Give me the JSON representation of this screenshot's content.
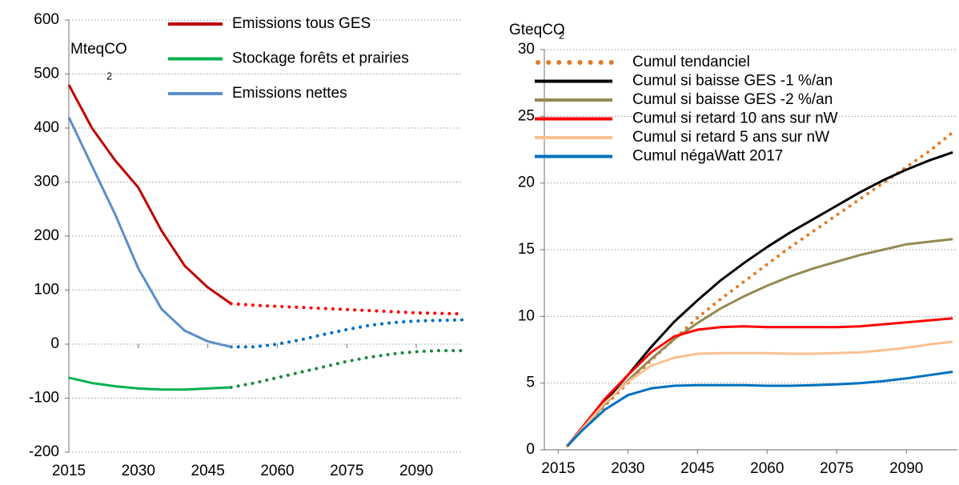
{
  "chart_data": [
    {
      "type": "line",
      "unit": "MteqCO",
      "unit_sub": "2",
      "x": [
        2015,
        2020,
        2025,
        2030,
        2035,
        2040,
        2045,
        2050,
        2055,
        2060,
        2065,
        2070,
        2075,
        2080,
        2085,
        2090,
        2095,
        2100
      ],
      "xlim": [
        2015,
        2100
      ],
      "xticks": [
        2015,
        2030,
        2045,
        2060,
        2075,
        2090
      ],
      "ylim": [
        -200,
        600
      ],
      "yticks": [
        -200,
        -100,
        0,
        100,
        200,
        300,
        400,
        500,
        600
      ],
      "grid": true,
      "legend": "top",
      "series": [
        {
          "name": "Emissions tous GES",
          "color": "#c00000",
          "projection_color": "#ff0000",
          "values": [
            480,
            400,
            340,
            290,
            210,
            145,
            105,
            75,
            null,
            null,
            null,
            null,
            null,
            null,
            null,
            null,
            null,
            null
          ],
          "projection_values": [
            null,
            null,
            null,
            null,
            null,
            null,
            null,
            75,
            72,
            70,
            68,
            66,
            64,
            62,
            60,
            58,
            57,
            56
          ]
        },
        {
          "name": "Stockage forêts et prairies",
          "color": "#00b050",
          "projection_color": "#1e8a3c",
          "values": [
            -62,
            -72,
            -78,
            -82,
            -84,
            -84,
            -82,
            -80,
            null,
            null,
            null,
            null,
            null,
            null,
            null,
            null,
            null,
            null
          ],
          "projection_values": [
            null,
            null,
            null,
            null,
            null,
            null,
            null,
            -80,
            -72,
            -62,
            -52,
            -42,
            -32,
            -24,
            -18,
            -14,
            -12,
            -12
          ]
        },
        {
          "name": "Emissions nettes",
          "color": "#5b8fc9",
          "projection_color": "#0070c0",
          "values": [
            420,
            330,
            240,
            140,
            65,
            25,
            5,
            -5,
            null,
            null,
            null,
            null,
            null,
            null,
            null,
            null,
            null,
            null
          ],
          "projection_values": [
            null,
            null,
            null,
            null,
            null,
            null,
            null,
            -5,
            -5,
            0,
            8,
            18,
            27,
            35,
            40,
            43,
            44,
            45
          ]
        }
      ]
    },
    {
      "type": "line",
      "unit": "GteqCO",
      "unit_sub": "2",
      "x": [
        2017,
        2020,
        2025,
        2030,
        2035,
        2040,
        2045,
        2050,
        2055,
        2060,
        2065,
        2070,
        2075,
        2080,
        2085,
        2090,
        2095,
        2100
      ],
      "xlim": [
        2012,
        2101
      ],
      "xticks": [
        2015,
        2030,
        2045,
        2060,
        2075,
        2090
      ],
      "ylim": [
        0,
        30
      ],
      "yticks": [
        0,
        5,
        10,
        15,
        20,
        25,
        30
      ],
      "grid": true,
      "legend": "top-left",
      "series": [
        {
          "name": "Cumul tendanciel",
          "color": "#e07b28",
          "line_style": "dotted",
          "values": [
            0.3,
            1.5,
            3.3,
            5.0,
            6.7,
            8.3,
            9.9,
            11.3,
            12.6,
            13.9,
            15.2,
            16.4,
            17.6,
            18.8,
            20.0,
            21.2,
            22.4,
            23.8
          ]
        },
        {
          "name": "Cumul si baisse GES -1 %/an",
          "color": "#000000",
          "line_style": "solid",
          "values": [
            0.3,
            1.6,
            3.6,
            5.6,
            7.7,
            9.6,
            11.2,
            12.7,
            14.0,
            15.2,
            16.3,
            17.3,
            18.3,
            19.3,
            20.2,
            21.0,
            21.7,
            22.3
          ]
        },
        {
          "name": "Cumul si baisse GES -2 %/an",
          "color": "#948a54",
          "line_style": "solid",
          "values": [
            0.3,
            1.5,
            3.4,
            5.2,
            6.8,
            8.3,
            9.5,
            10.6,
            11.5,
            12.3,
            13.0,
            13.6,
            14.1,
            14.6,
            15.0,
            15.4,
            15.6,
            15.8
          ]
        },
        {
          "name": "Cumul si retard 10 ans sur nW",
          "color": "#ff0000",
          "line_style": "solid",
          "values": [
            0.3,
            1.6,
            3.8,
            5.6,
            7.3,
            8.5,
            9.0,
            9.2,
            9.25,
            9.2,
            9.2,
            9.2,
            9.2,
            9.25,
            9.4,
            9.55,
            9.7,
            9.85
          ]
        },
        {
          "name": "Cumul si retard 5 ans sur nW",
          "color": "#fac090",
          "line_style": "solid",
          "values": [
            0.3,
            1.5,
            3.5,
            5.1,
            6.3,
            6.9,
            7.2,
            7.25,
            7.25,
            7.25,
            7.2,
            7.2,
            7.25,
            7.3,
            7.45,
            7.65,
            7.9,
            8.1
          ]
        },
        {
          "name": "Cumul négaWatt 2017",
          "color": "#0070c0",
          "line_style": "solid",
          "values": [
            0.3,
            1.4,
            3.0,
            4.1,
            4.6,
            4.8,
            4.85,
            4.85,
            4.85,
            4.8,
            4.8,
            4.85,
            4.9,
            5.0,
            5.15,
            5.35,
            5.6,
            5.85
          ]
        }
      ]
    }
  ]
}
